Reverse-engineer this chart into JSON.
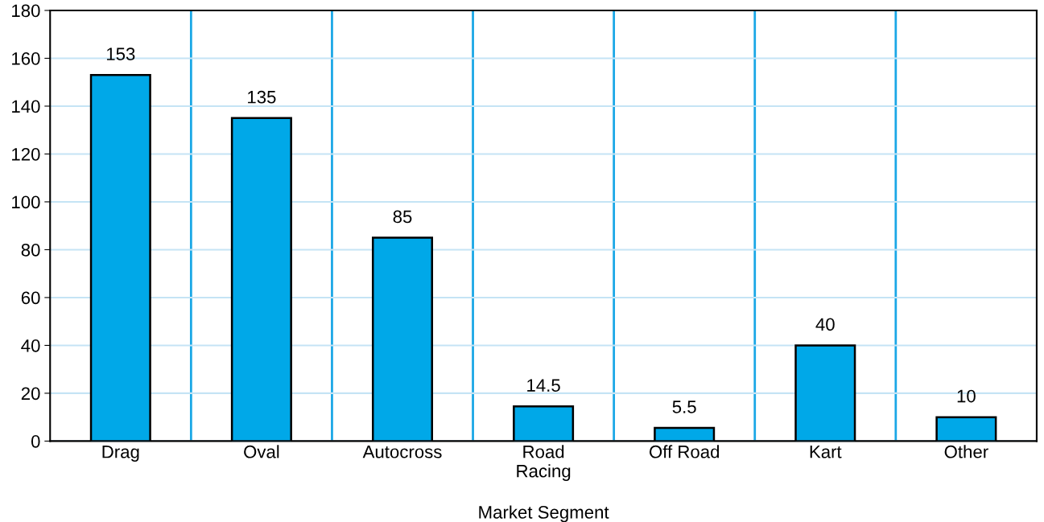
{
  "chart_data": {
    "type": "bar",
    "xlabel": "Market Segment",
    "categories": [
      "Drag",
      "Oval",
      "Autocross",
      "Road\nRacing",
      "Off Road",
      "Kart",
      "Other"
    ],
    "values": [
      153,
      135,
      85,
      14.5,
      5.5,
      40,
      10
    ],
    "color": "#00a8e8",
    "ylim": [
      0,
      180
    ],
    "yticks": [
      0,
      20,
      40,
      60,
      80,
      100,
      120,
      140,
      160,
      180
    ],
    "grid": true,
    "data_labels": true
  }
}
